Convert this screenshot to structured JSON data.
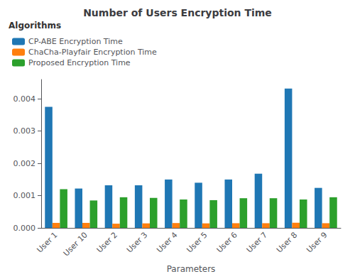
{
  "chart_data": {
    "type": "bar",
    "title": "Number of Users Encryption Time",
    "xlabel": "Parameters",
    "legend_title": "Algorithms",
    "categories": [
      "User 1",
      "User 10",
      "User 2",
      "User 3",
      "User 4",
      "User 5",
      "User 6",
      "User 7",
      "User 8",
      "User 9"
    ],
    "series": [
      {
        "name": "CP-ABE Encryption Time",
        "color": "#1f77b4",
        "values": [
          0.00375,
          0.00122,
          0.00132,
          0.00132,
          0.0015,
          0.0014,
          0.0015,
          0.00168,
          0.00432,
          0.00124
        ]
      },
      {
        "name": "ChaCha-Playfair Encryption Time",
        "color": "#ff7f0e",
        "values": [
          0.000155,
          0.000155,
          0.00013,
          0.00014,
          0.00015,
          0.00014,
          0.000145,
          0.000145,
          0.00016,
          0.000145
        ]
      },
      {
        "name": "Proposed Encryption Time",
        "color": "#2ca02c",
        "values": [
          0.0012,
          0.00085,
          0.00095,
          0.00093,
          0.00088,
          0.00086,
          0.00092,
          0.00092,
          0.00088,
          0.00095
        ]
      }
    ],
    "ylim": [
      0,
      0.0046
    ],
    "yticks": [
      {
        "value": 0,
        "label": "0.000"
      },
      0.001,
      0.002,
      0.003,
      0.004
    ],
    "grid": false,
    "legend": "upper left"
  }
}
